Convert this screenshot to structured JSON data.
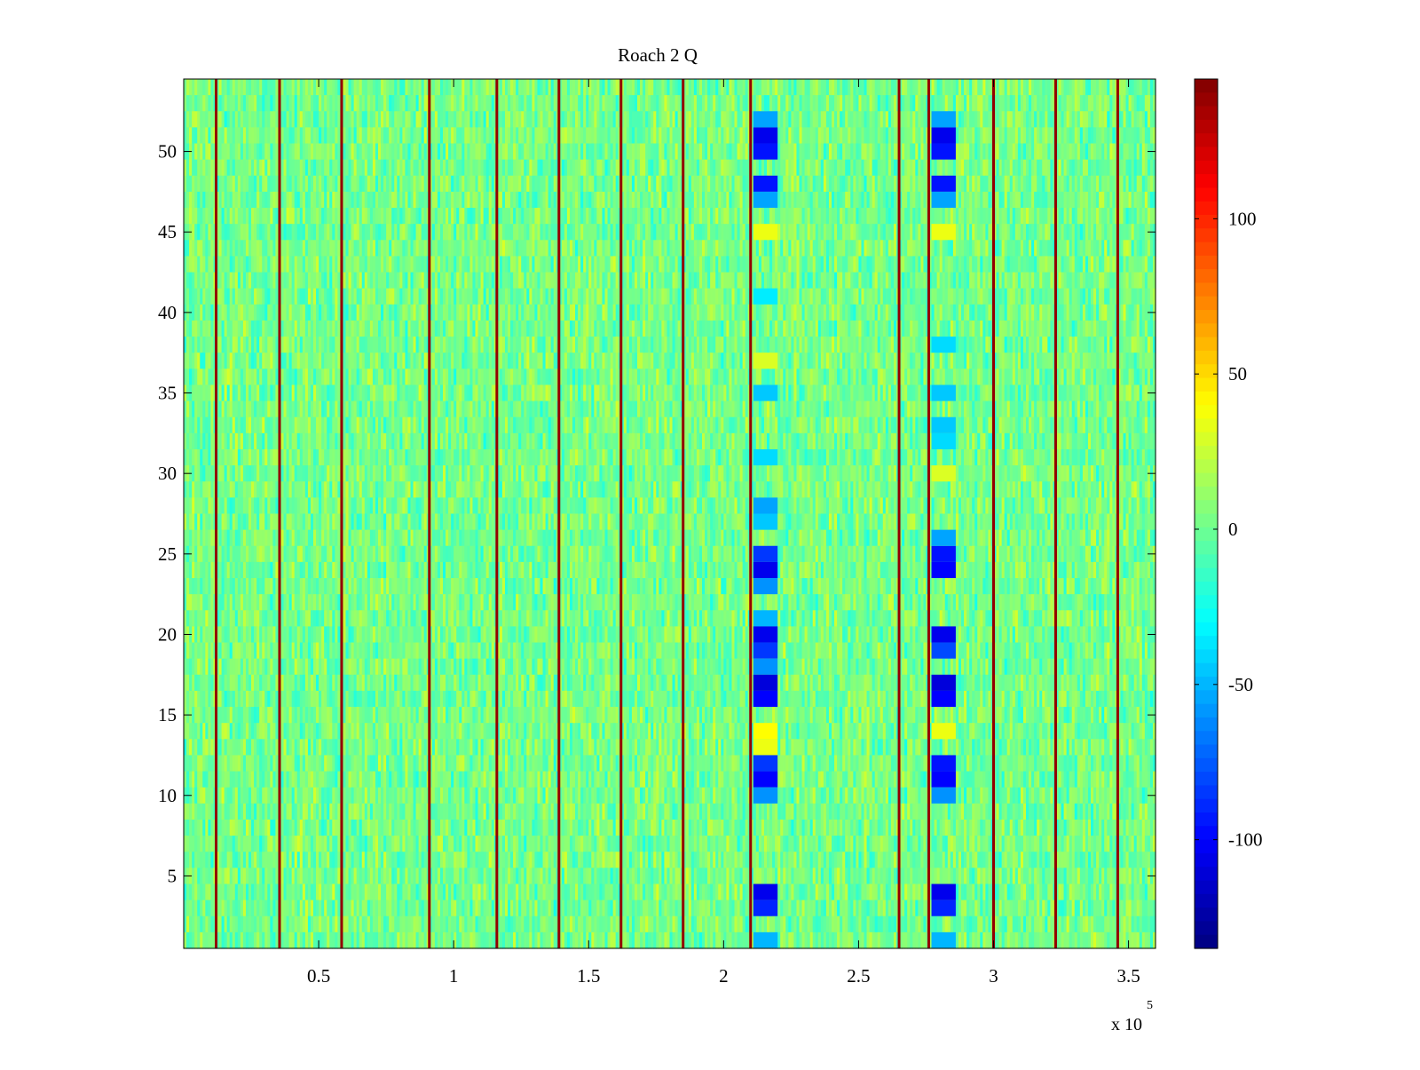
{
  "chart_data": {
    "type": "heatmap",
    "title": "Roach 2 Q",
    "xlabel": "",
    "ylabel": "",
    "xlim": [
      0,
      360000
    ],
    "ylim": [
      0.5,
      54.5
    ],
    "x_ticks": [
      50000,
      100000,
      150000,
      200000,
      250000,
      300000,
      350000
    ],
    "x_tick_labels": [
      "0.5",
      "1",
      "1.5",
      "2",
      "2.5",
      "3",
      "3.5"
    ],
    "x_exponent_label": {
      "base": "x 10",
      "exp": "5"
    },
    "y_ticks": [
      5,
      10,
      15,
      20,
      25,
      30,
      35,
      40,
      45,
      50
    ],
    "y_tick_labels": [
      "5",
      "10",
      "15",
      "20",
      "25",
      "30",
      "35",
      "40",
      "45",
      "50"
    ],
    "rows": 54,
    "columns": 360,
    "background_value_range": [
      -25,
      30
    ],
    "colormap": "jet",
    "colorbar": {
      "range": [
        -135,
        145
      ],
      "ticks": [
        -100,
        -50,
        0,
        50,
        100
      ],
      "tick_labels": [
        "-100",
        "-50",
        "0",
        "50",
        "100"
      ]
    },
    "vertical_lines": [
      {
        "x": 12000,
        "value": 140
      },
      {
        "x": 35500,
        "value": 140
      },
      {
        "x": 58500,
        "value": 140
      },
      {
        "x": 91000,
        "value": 140
      },
      {
        "x": 116000,
        "value": 140
      },
      {
        "x": 139000,
        "value": 140
      },
      {
        "x": 162000,
        "value": 140
      },
      {
        "x": 185000,
        "value": 140
      },
      {
        "x": 210000,
        "value": 140
      },
      {
        "x": 265000,
        "value": 140
      },
      {
        "x": 276000,
        "value": 140
      },
      {
        "x": 300000,
        "value": 140
      },
      {
        "x": 323000,
        "value": 140
      },
      {
        "x": 346000,
        "value": 140
      }
    ],
    "anomaly_bands": [
      {
        "x_range": [
          211000,
          220000
        ],
        "cells": [
          {
            "y": 51,
            "value": -105
          },
          {
            "y": 50,
            "value": -95
          },
          {
            "y": 52,
            "value": -55
          },
          {
            "y": 48,
            "value": -95
          },
          {
            "y": 47,
            "value": -55
          },
          {
            "y": 45,
            "value": 35
          },
          {
            "y": 37,
            "value": 30
          },
          {
            "y": 35,
            "value": -45
          },
          {
            "y": 41,
            "value": -35
          },
          {
            "y": 31,
            "value": -40
          },
          {
            "y": 28,
            "value": -55
          },
          {
            "y": 27,
            "value": -45
          },
          {
            "y": 25,
            "value": -85
          },
          {
            "y": 24,
            "value": -105
          },
          {
            "y": 23,
            "value": -60
          },
          {
            "y": 21,
            "value": -50
          },
          {
            "y": 20,
            "value": -105
          },
          {
            "y": 19,
            "value": -85
          },
          {
            "y": 18,
            "value": -60
          },
          {
            "y": 17,
            "value": -110
          },
          {
            "y": 16,
            "value": -100
          },
          {
            "y": 14,
            "value": 40
          },
          {
            "y": 13,
            "value": 35
          },
          {
            "y": 12,
            "value": -85
          },
          {
            "y": 11,
            "value": -100
          },
          {
            "y": 10,
            "value": -60
          },
          {
            "y": 4,
            "value": -105
          },
          {
            "y": 3,
            "value": -90
          },
          {
            "y": 1,
            "value": -50
          }
        ]
      },
      {
        "x_range": [
          277000,
          286000
        ],
        "cells": [
          {
            "y": 51,
            "value": -105
          },
          {
            "y": 50,
            "value": -95
          },
          {
            "y": 52,
            "value": -55
          },
          {
            "y": 48,
            "value": -95
          },
          {
            "y": 47,
            "value": -55
          },
          {
            "y": 45,
            "value": 35
          },
          {
            "y": 38,
            "value": -40
          },
          {
            "y": 35,
            "value": -45
          },
          {
            "y": 33,
            "value": -45
          },
          {
            "y": 32,
            "value": -40
          },
          {
            "y": 30,
            "value": 30
          },
          {
            "y": 25,
            "value": -95
          },
          {
            "y": 24,
            "value": -100
          },
          {
            "y": 26,
            "value": -55
          },
          {
            "y": 20,
            "value": -105
          },
          {
            "y": 19,
            "value": -80
          },
          {
            "y": 17,
            "value": -110
          },
          {
            "y": 16,
            "value": -100
          },
          {
            "y": 14,
            "value": 35
          },
          {
            "y": 12,
            "value": -95
          },
          {
            "y": 11,
            "value": -100
          },
          {
            "y": 10,
            "value": -60
          },
          {
            "y": 4,
            "value": -105
          },
          {
            "y": 3,
            "value": -90
          },
          {
            "y": 1,
            "value": -50
          }
        ]
      }
    ]
  }
}
